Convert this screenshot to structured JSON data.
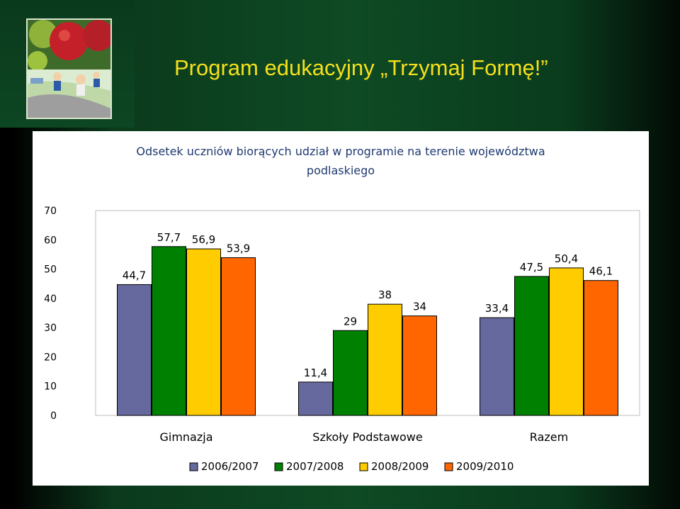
{
  "slide": {
    "title": "Program edukacyjny „Trzymaj Formę!”"
  },
  "chart_data": {
    "type": "bar",
    "title_lines": [
      "Odsetek uczniów biorących udział w programie na terenie województwa",
      "podlaskiego"
    ],
    "categories": [
      "Gimnazja",
      "Szkoły Podstawowe",
      "Razem"
    ],
    "series": [
      {
        "name": "2006/2007",
        "color": "#66699e",
        "values": [
          44.7,
          11.4,
          33.4
        ],
        "labels": [
          "44,7",
          "11,4",
          "33,4"
        ]
      },
      {
        "name": "2007/2008",
        "color": "#008000",
        "values": [
          57.7,
          29,
          47.5
        ],
        "labels": [
          "57,7",
          "29",
          "47,5"
        ]
      },
      {
        "name": "2008/2009",
        "color": "#ffcc00",
        "values": [
          56.9,
          38,
          50.4
        ],
        "labels": [
          "56,9",
          "38",
          "50,4"
        ]
      },
      {
        "name": "2009/2010",
        "color": "#ff6600",
        "values": [
          53.9,
          34,
          46.1
        ],
        "labels": [
          "53,9",
          "34",
          "46,1"
        ]
      }
    ],
    "ylim": [
      0,
      70
    ],
    "yticks": [
      "0",
      "10",
      "20",
      "30",
      "40",
      "50",
      "60",
      "70"
    ],
    "legend_position": "bottom",
    "grid": false
  }
}
